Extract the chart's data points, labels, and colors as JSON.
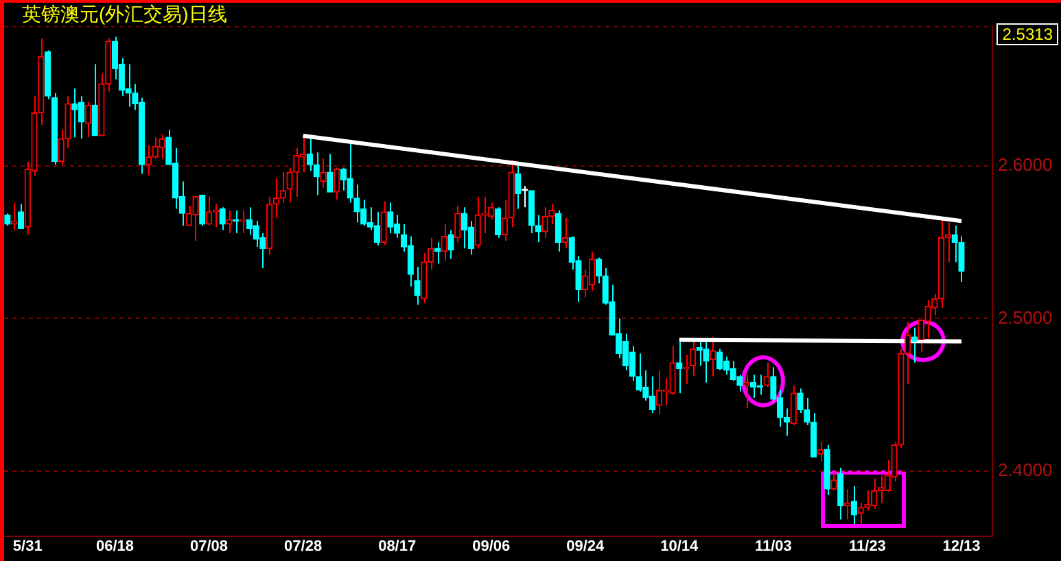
{
  "chart_data": {
    "type": "candlestick",
    "title": "英镑澳元(外汇交易)日线",
    "categories": [
      null,
      null,
      null,
      "5/31",
      null,
      null,
      null,
      null,
      null,
      null,
      null,
      null,
      null,
      null,
      null,
      null,
      "06/18",
      null,
      null,
      null,
      null,
      null,
      null,
      null,
      null,
      null,
      null,
      null,
      null,
      null,
      "07/08",
      null,
      null,
      null,
      null,
      null,
      null,
      null,
      null,
      null,
      null,
      null,
      null,
      null,
      "07/28",
      null,
      null,
      null,
      null,
      null,
      null,
      null,
      null,
      null,
      null,
      null,
      null,
      null,
      "08/17",
      null,
      null,
      null,
      null,
      null,
      null,
      null,
      null,
      null,
      null,
      null,
      null,
      null,
      "09/06",
      null,
      null,
      null,
      null,
      null,
      null,
      null,
      null,
      null,
      null,
      null,
      null,
      null,
      "09/24",
      null,
      null,
      null,
      null,
      null,
      null,
      null,
      null,
      null,
      null,
      null,
      null,
      null,
      "10/14",
      null,
      null,
      null,
      null,
      null,
      null,
      null,
      null,
      null,
      null,
      null,
      null,
      null,
      "11/03",
      null,
      null,
      null,
      null,
      null,
      null,
      null,
      null,
      null,
      null,
      null,
      null,
      null,
      "11/23",
      null,
      null,
      null,
      null,
      null,
      null,
      null,
      null,
      null,
      null,
      null,
      null,
      null,
      "12/13"
    ],
    "ohlc": [
      [
        2.568,
        2.569,
        2.561,
        2.562
      ],
      [
        2.562,
        2.576,
        2.558,
        2.564
      ],
      [
        2.57,
        2.575,
        2.559,
        2.559
      ],
      [
        2.56,
        2.603,
        2.555,
        2.598
      ],
      [
        2.597,
        2.646,
        2.594,
        2.635
      ],
      [
        2.635,
        2.684,
        2.627,
        2.672
      ],
      [
        2.675,
        2.676,
        2.644,
        2.646
      ],
      [
        2.645,
        2.648,
        2.601,
        2.603
      ],
      [
        2.603,
        2.624,
        2.601,
        2.618
      ],
      [
        2.618,
        2.646,
        2.612,
        2.641
      ],
      [
        2.641,
        2.651,
        2.619,
        2.637
      ],
      [
        2.642,
        2.646,
        2.618,
        2.629
      ],
      [
        2.628,
        2.642,
        2.619,
        2.64
      ],
      [
        2.64,
        2.667,
        2.62,
        2.62
      ],
      [
        2.62,
        2.661,
        2.62,
        2.654
      ],
      [
        2.654,
        2.684,
        2.649,
        2.682
      ],
      [
        2.682,
        2.685,
        2.657,
        2.664
      ],
      [
        2.667,
        2.671,
        2.646,
        2.65
      ],
      [
        2.651,
        2.667,
        2.639,
        2.648
      ],
      [
        2.648,
        2.654,
        2.637,
        2.641
      ],
      [
        2.642,
        2.645,
        2.595,
        2.601
      ],
      [
        2.601,
        2.614,
        2.594,
        2.606
      ],
      [
        2.606,
        2.619,
        2.605,
        2.613
      ],
      [
        2.612,
        2.621,
        2.605,
        2.618
      ],
      [
        2.619,
        2.624,
        2.601,
        2.601
      ],
      [
        2.602,
        2.612,
        2.572,
        2.579
      ],
      [
        2.58,
        2.59,
        2.561,
        2.569
      ],
      [
        2.561,
        2.574,
        2.561,
        2.569
      ],
      [
        2.568,
        2.58,
        2.551,
        2.58
      ],
      [
        2.581,
        2.581,
        2.561,
        2.562
      ],
      [
        2.562,
        2.58,
        2.561,
        2.57
      ],
      [
        2.57,
        2.575,
        2.56,
        2.571
      ],
      [
        2.572,
        2.573,
        2.558,
        2.562
      ],
      [
        2.562,
        2.571,
        2.556,
        2.565
      ],
      [
        2.565,
        2.571,
        2.556,
        2.564
      ],
      [
        2.564,
        2.571,
        2.556,
        2.565
      ],
      [
        2.565,
        2.573,
        2.555,
        2.559
      ],
      [
        2.561,
        2.564,
        2.547,
        2.552
      ],
      [
        2.553,
        2.556,
        2.533,
        2.546
      ],
      [
        2.546,
        2.58,
        2.542,
        2.575
      ],
      [
        2.575,
        2.592,
        2.566,
        2.579
      ],
      [
        2.579,
        2.596,
        2.576,
        2.584
      ],
      [
        2.585,
        2.599,
        2.576,
        2.596
      ],
      [
        2.596,
        2.612,
        2.58,
        2.607
      ],
      [
        2.606,
        2.619,
        2.596,
        2.608
      ],
      [
        2.608,
        2.619,
        2.597,
        2.601
      ],
      [
        2.601,
        2.609,
        2.581,
        2.593
      ],
      [
        2.59,
        2.605,
        2.586,
        2.596
      ],
      [
        2.596,
        2.608,
        2.583,
        2.583
      ],
      [
        2.583,
        2.599,
        2.578,
        2.598
      ],
      [
        2.598,
        2.599,
        2.584,
        2.591
      ],
      [
        2.592,
        2.615,
        2.576,
        2.579
      ],
      [
        2.579,
        2.588,
        2.563,
        2.57
      ],
      [
        2.572,
        2.578,
        2.561,
        2.562
      ],
      [
        2.563,
        2.573,
        2.558,
        2.56
      ],
      [
        2.561,
        2.57,
        2.548,
        2.55
      ],
      [
        2.55,
        2.577,
        2.548,
        2.57
      ],
      [
        2.57,
        2.576,
        2.556,
        2.56
      ],
      [
        2.562,
        2.568,
        2.553,
        2.556
      ],
      [
        2.555,
        2.562,
        2.544,
        2.547
      ],
      [
        2.548,
        2.554,
        2.521,
        2.529
      ],
      [
        2.525,
        2.534,
        2.509,
        2.515
      ],
      [
        2.513,
        2.543,
        2.51,
        2.537
      ],
      [
        2.537,
        2.553,
        2.532,
        2.546
      ],
      [
        2.546,
        2.55,
        2.536,
        2.544
      ],
      [
        2.544,
        2.562,
        2.538,
        2.554
      ],
      [
        2.555,
        2.558,
        2.539,
        2.545
      ],
      [
        2.553,
        2.574,
        2.55,
        2.569
      ],
      [
        2.569,
        2.573,
        2.546,
        2.558
      ],
      [
        2.56,
        2.564,
        2.542,
        2.546
      ],
      [
        2.548,
        2.58,
        2.546,
        2.568
      ],
      [
        2.568,
        2.58,
        2.556,
        2.569
      ],
      [
        2.567,
        2.576,
        2.565,
        2.573
      ],
      [
        2.572,
        2.573,
        2.553,
        2.555
      ],
      [
        2.555,
        2.578,
        2.551,
        2.566
      ],
      [
        2.566,
        2.604,
        2.56,
        2.596
      ],
      [
        2.595,
        2.601,
        2.572,
        2.582
      ],
      [
        2.584,
        2.587,
        2.573,
        2.584
      ],
      [
        2.584,
        2.584,
        2.556,
        2.561
      ],
      [
        2.561,
        2.568,
        2.55,
        2.557
      ],
      [
        2.557,
        2.573,
        2.553,
        2.567
      ],
      [
        2.567,
        2.575,
        2.562,
        2.571
      ],
      [
        2.569,
        2.571,
        2.544,
        2.55
      ],
      [
        2.55,
        2.566,
        2.546,
        2.553
      ],
      [
        2.553,
        2.554,
        2.532,
        2.537
      ],
      [
        2.538,
        2.541,
        2.511,
        2.519
      ],
      [
        2.519,
        2.532,
        2.514,
        2.528
      ],
      [
        2.522,
        2.544,
        2.518,
        2.539
      ],
      [
        2.539,
        2.54,
        2.523,
        2.528
      ],
      [
        2.528,
        2.533,
        2.509,
        2.51
      ],
      [
        2.511,
        2.522,
        2.489,
        2.489
      ],
      [
        2.49,
        2.5,
        2.474,
        2.477
      ],
      [
        2.485,
        2.49,
        2.466,
        2.469
      ],
      [
        2.478,
        2.482,
        2.459,
        2.462
      ],
      [
        2.462,
        2.477,
        2.452,
        2.453
      ],
      [
        2.455,
        2.466,
        2.446,
        2.448
      ],
      [
        2.449,
        2.462,
        2.438,
        2.44
      ],
      [
        2.443,
        2.466,
        2.437,
        2.453
      ],
      [
        2.452,
        2.461,
        2.443,
        2.453
      ],
      [
        2.451,
        2.482,
        2.45,
        2.471
      ],
      [
        2.471,
        2.485,
        2.451,
        2.467
      ],
      [
        2.467,
        2.476,
        2.457,
        2.468
      ],
      [
        2.469,
        2.485,
        2.462,
        2.48
      ],
      [
        2.481,
        2.485,
        2.469,
        2.479
      ],
      [
        2.48,
        2.487,
        2.458,
        2.472
      ],
      [
        2.473,
        2.488,
        2.462,
        2.479
      ],
      [
        2.478,
        2.48,
        2.466,
        2.467
      ],
      [
        2.472,
        2.475,
        2.463,
        2.466
      ],
      [
        2.467,
        2.472,
        2.459,
        2.46
      ],
      [
        2.462,
        2.463,
        2.452,
        2.456
      ],
      [
        2.456,
        2.463,
        2.441,
        2.458
      ],
      [
        2.458,
        2.463,
        2.448,
        2.455
      ],
      [
        2.456,
        2.463,
        2.45,
        2.455
      ],
      [
        2.456,
        2.471,
        2.455,
        2.462
      ],
      [
        2.462,
        2.468,
        2.445,
        2.447
      ],
      [
        2.448,
        2.453,
        2.429,
        2.435
      ],
      [
        2.435,
        2.441,
        2.423,
        2.432
      ],
      [
        2.431,
        2.456,
        2.43,
        2.451
      ],
      [
        2.451,
        2.454,
        2.438,
        2.44
      ],
      [
        2.44,
        2.448,
        2.43,
        2.432
      ],
      [
        2.432,
        2.438,
        2.409,
        2.409
      ],
      [
        2.411,
        2.419,
        2.406,
        2.414
      ],
      [
        2.414,
        2.417,
        2.384,
        2.388
      ],
      [
        2.388,
        2.399,
        2.387,
        2.394
      ],
      [
        2.398,
        2.402,
        2.368,
        2.377
      ],
      [
        2.377,
        2.388,
        2.368,
        2.379
      ],
      [
        2.38,
        2.39,
        2.365,
        2.371
      ],
      [
        2.372,
        2.379,
        2.365,
        2.376
      ],
      [
        2.376,
        2.387,
        2.374,
        2.378
      ],
      [
        2.377,
        2.395,
        2.375,
        2.387
      ],
      [
        2.387,
        2.397,
        2.379,
        2.389
      ],
      [
        2.387,
        2.407,
        2.386,
        2.397
      ],
      [
        2.396,
        2.419,
        2.393,
        2.417
      ],
      [
        2.417,
        2.48,
        2.415,
        2.477
      ],
      [
        2.477,
        2.498,
        2.457,
        2.489
      ],
      [
        2.488,
        2.494,
        2.471,
        2.485
      ],
      [
        2.486,
        2.499,
        2.478,
        2.499
      ],
      [
        2.498,
        2.512,
        2.487,
        2.508
      ],
      [
        2.507,
        2.516,
        2.502,
        2.513
      ],
      [
        2.513,
        2.565,
        2.507,
        2.553
      ],
      [
        2.553,
        2.563,
        2.537,
        2.555
      ],
      [
        2.555,
        2.561,
        2.537,
        2.55
      ],
      [
        2.55,
        2.554,
        2.524,
        2.531
      ]
    ],
    "colors": [
      "#00ffff",
      "#ff0000",
      "#00ffff",
      "#ff0000",
      "#ff0000",
      "#ff0000",
      "#00ffff",
      "#00ffff",
      "#ff0000",
      "#ff0000",
      "#00ffff",
      "#00ffff",
      "#ff0000",
      "#00ffff",
      "#ff0000",
      "#ff0000",
      "#00ffff",
      "#00ffff",
      "#00ffff",
      "#00ffff",
      "#00ffff",
      "#ff0000",
      "#ff0000",
      "#ff0000",
      "#00ffff",
      "#00ffff",
      "#00ffff",
      "#ff0000",
      "#ff0000",
      "#00ffff",
      "#ff0000",
      "#ff0000",
      "#00ffff",
      "#ff0000",
      "#00ffff",
      "#ff0000",
      "#00ffff",
      "#00ffff",
      "#00ffff",
      "#ff0000",
      "#ff0000",
      "#ff0000",
      "#ff0000",
      "#ff0000",
      "#ff0000",
      "#00ffff",
      "#00ffff",
      "#ff0000",
      "#00ffff",
      "#ff0000",
      "#00ffff",
      "#00ffff",
      "#00ffff",
      "#00ffff",
      "#00ffff",
      "#00ffff",
      "#ff0000",
      "#00ffff",
      "#00ffff",
      "#00ffff",
      "#00ffff",
      "#00ffff",
      "#ff0000",
      "#ff0000",
      "#00ffff",
      "#ff0000",
      "#00ffff",
      "#ff0000",
      "#00ffff",
      "#00ffff",
      "#ff0000",
      "#ff0000",
      "#ff0000",
      "#00ffff",
      "#ff0000",
      "#ff0000",
      "#00ffff",
      "#ffffff",
      "#00ffff",
      "#00ffff",
      "#ff0000",
      "#ff0000",
      "#00ffff",
      "#ff0000",
      "#00ffff",
      "#00ffff",
      "#ff0000",
      "#ff0000",
      "#00ffff",
      "#00ffff",
      "#00ffff",
      "#00ffff",
      "#00ffff",
      "#00ffff",
      "#00ffff",
      "#00ffff",
      "#00ffff",
      "#ff0000",
      "#ff0000",
      "#ff0000",
      "#00ffff",
      "#ff0000",
      "#ff0000",
      "#00ffff",
      "#00ffff",
      "#ff0000",
      "#00ffff",
      "#00ffff",
      "#00ffff",
      "#00ffff",
      "#ff0000",
      "#00ffff",
      "#00ffff",
      "#ff0000",
      "#00ffff",
      "#00ffff",
      "#00ffff",
      "#ff0000",
      "#00ffff",
      "#00ffff",
      "#00ffff",
      "#ff0000",
      "#00ffff",
      "#ff0000",
      "#00ffff",
      "#ff0000",
      "#00ffff",
      "#ff0000",
      "#ff0000",
      "#ff0000",
      "#ff0000",
      "#ff0000",
      "#ff0000",
      "#ff0000",
      "#ff0000",
      "#00ffff",
      "#ff0000",
      "#ff0000",
      "#ff0000",
      "#ff0000",
      "#ff0000",
      "#00ffff",
      "#00ffff"
    ],
    "series": [
      {
        "type": "line",
        "color": "#ffffff",
        "x": [
          "07/28",
          "12/13"
        ],
        "values": [
          2.62,
          2.564
        ]
      },
      {
        "type": "line",
        "color": "#ffffff",
        "x": [
          "10/14",
          "12/13"
        ],
        "values": [
          2.486,
          2.485
        ]
      }
    ],
    "ylim": [
      2.357,
      2.692
    ],
    "yticks": [
      {
        "value": 2.4,
        "label": "2.4000"
      },
      {
        "value": 2.5,
        "label": "2.5000"
      },
      {
        "value": 2.6,
        "label": "2.6000"
      }
    ],
    "grid": "y",
    "annotations": [
      "2.5313"
    ]
  }
}
